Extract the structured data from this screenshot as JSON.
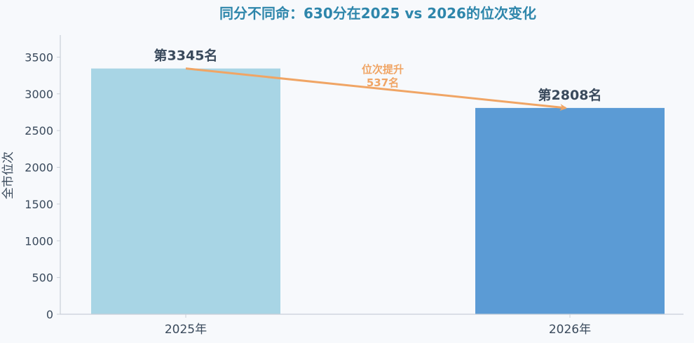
{
  "chart_data": {
    "type": "bar",
    "title": "同分不同命：630分在2025 vs 2026的位次变化",
    "ylabel": "全市位次",
    "xlabel": "",
    "categories": [
      "2025年",
      "2026年"
    ],
    "values": [
      3345,
      2808
    ],
    "bar_labels": [
      "第3345名",
      "第2808名"
    ],
    "bar_colors": [
      "#a8d5e5",
      "#5b9bd5"
    ],
    "ylim": [
      0,
      3800
    ],
    "yticks": [
      0,
      500,
      1000,
      1500,
      2000,
      2500,
      3000,
      3500
    ],
    "grid": false,
    "annotation": {
      "line1": "位次提升",
      "line2": "537名",
      "color": "#f0a565"
    },
    "colors": {
      "title": "#2e86ab",
      "label": "#3a4a5c",
      "axis": "#c9cfd8"
    }
  }
}
